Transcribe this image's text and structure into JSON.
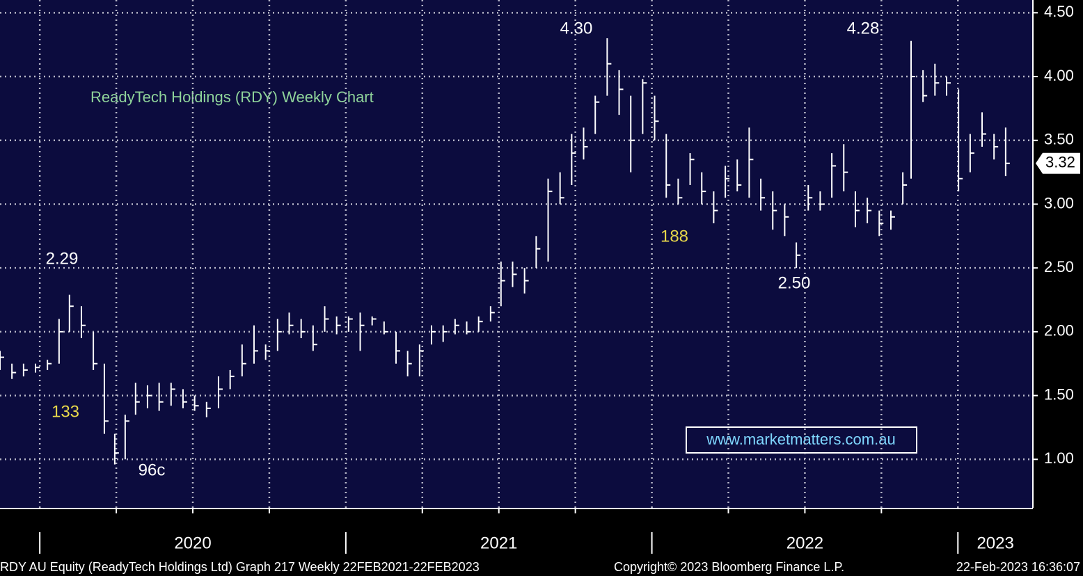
{
  "chart_data": {
    "type": "hlc",
    "title": "ReadyTech Holdings (RDY) Weekly Chart",
    "watermark": "www.marketmatters.com.au",
    "footer": [
      "RDY AU Equity (ReadyTech Holdings Ltd) Graph 217  Weekly 22FEB2021-22FEB2023",
      "Copyright© 2023 Bloomberg Finance L.P.",
      "22-Feb-2023 16:36:07"
    ],
    "annotations": [
      {
        "text": "2.29",
        "color": "#ffffff"
      },
      {
        "text": "133",
        "color": "#e8d84a"
      },
      {
        "text": "96c",
        "color": "#ffffff"
      },
      {
        "text": "4.30",
        "color": "#ffffff"
      },
      {
        "text": "188",
        "color": "#e8d84a"
      },
      {
        "text": "2.50",
        "color": "#ffffff"
      },
      {
        "text": "4.28",
        "color": "#ffffff"
      }
    ],
    "last_label": 3.32,
    "color": "#ffffff",
    "grid": true,
    "xlim": [
      2019.87,
      2023.245
    ],
    "xticks": [
      2020,
      2021,
      2022,
      2023
    ],
    "xminorticks": [
      2020.25,
      2020.5,
      2020.75,
      2021.25,
      2021.5,
      2021.75,
      2022.25,
      2022.5,
      2022.75
    ],
    "ylim": [
      0.62,
      4.6
    ],
    "yticks": [
      {
        "value": 1,
        "label": "1.00"
      },
      {
        "value": 1.5,
        "label": "1.50"
      },
      {
        "value": 2,
        "label": "2.00"
      },
      {
        "value": 2.5,
        "label": "2.50"
      },
      {
        "value": 3,
        "label": "3.00"
      },
      {
        "value": 3.5,
        "label": "3.50"
      },
      {
        "value": 4,
        "label": "4.00"
      },
      {
        "value": 4.5,
        "label": "4.50"
      }
    ],
    "x": [
      2019.87,
      2019.909,
      2019.947,
      2019.986,
      2020.025,
      2020.063,
      2020.097,
      2020.136,
      2020.175,
      2020.211,
      2020.245,
      2020.279,
      2020.313,
      2020.352,
      2020.39,
      2020.429,
      2020.468,
      2020.506,
      2020.545,
      2020.584,
      2020.622,
      2020.661,
      2020.7,
      2020.738,
      2020.777,
      2020.815,
      2020.854,
      2020.893,
      2020.931,
      2020.97,
      2021.009,
      2021.047,
      2021.086,
      2021.125,
      2021.164,
      2021.202,
      2021.241,
      2021.28,
      2021.318,
      2021.357,
      2021.395,
      2021.434,
      2021.473,
      2021.507,
      2021.545,
      2021.584,
      2021.622,
      2021.661,
      2021.7,
      2021.738,
      2021.777,
      2021.815,
      2021.854,
      2021.893,
      2021.931,
      2021.97,
      2022.009,
      2022.047,
      2022.086,
      2022.125,
      2022.163,
      2022.202,
      2022.24,
      2022.279,
      2022.318,
      2022.356,
      2022.395,
      2022.434,
      2022.472,
      2022.511,
      2022.55,
      2022.588,
      2022.627,
      2022.665,
      2022.704,
      2022.743,
      2022.781,
      2022.82,
      2022.847,
      2022.886,
      2022.925,
      2022.963,
      2023.002,
      2023.04,
      2023.079,
      2023.118,
      2023.156
    ],
    "high": [
      1.85,
      1.75,
      1.75,
      1.75,
      1.78,
      2.1,
      2.29,
      2.2,
      2.0,
      1.75,
      1.2,
      1.35,
      1.6,
      1.58,
      1.6,
      1.6,
      1.55,
      1.5,
      1.45,
      1.65,
      1.7,
      1.9,
      2.05,
      1.9,
      2.1,
      2.15,
      2.1,
      2.05,
      2.2,
      2.12,
      2.12,
      2.15,
      2.12,
      2.08,
      2.0,
      1.85,
      1.9,
      2.05,
      2.05,
      2.1,
      2.08,
      2.12,
      2.2,
      2.55,
      2.55,
      2.5,
      2.75,
      3.2,
      3.25,
      3.55,
      3.6,
      3.85,
      4.3,
      4.05,
      3.85,
      3.98,
      3.85,
      3.55,
      3.2,
      3.4,
      3.25,
      3.1,
      3.3,
      3.35,
      3.6,
      3.2,
      3.1,
      3.0,
      2.7,
      3.15,
      3.1,
      3.4,
      3.47,
      3.1,
      3.05,
      2.95,
      2.95,
      3.25,
      4.28,
      4.05,
      4.1,
      4.0,
      3.9,
      3.55,
      3.72,
      3.55,
      3.6
    ],
    "low": [
      1.7,
      1.63,
      1.65,
      1.68,
      1.7,
      1.75,
      2.0,
      1.95,
      1.7,
      1.2,
      0.96,
      1.0,
      1.35,
      1.4,
      1.38,
      1.42,
      1.4,
      1.38,
      1.33,
      1.4,
      1.55,
      1.65,
      1.75,
      1.78,
      1.85,
      1.98,
      1.95,
      1.85,
      2.0,
      1.98,
      2.0,
      1.85,
      2.05,
      1.98,
      1.75,
      1.65,
      1.65,
      1.9,
      1.92,
      1.98,
      1.98,
      2.0,
      2.08,
      2.2,
      2.35,
      2.3,
      2.5,
      2.55,
      3.0,
      3.15,
      3.35,
      3.55,
      3.85,
      3.7,
      3.25,
      3.55,
      3.5,
      3.05,
      3.0,
      3.15,
      3.0,
      2.85,
      3.05,
      3.1,
      3.05,
      2.95,
      2.8,
      2.75,
      2.5,
      2.95,
      2.95,
      3.05,
      3.1,
      2.82,
      2.85,
      2.75,
      2.8,
      3.0,
      3.2,
      3.8,
      3.85,
      3.85,
      3.1,
      3.25,
      3.45,
      3.35,
      3.22
    ],
    "close": [
      1.8,
      1.68,
      1.7,
      1.72,
      1.75,
      2.0,
      2.2,
      2.05,
      1.75,
      1.3,
      1.05,
      1.3,
      1.45,
      1.5,
      1.45,
      1.55,
      1.45,
      1.42,
      1.4,
      1.55,
      1.65,
      1.75,
      1.85,
      1.85,
      2.0,
      2.05,
      2.0,
      1.9,
      2.1,
      2.05,
      2.1,
      2.05,
      2.1,
      2.0,
      1.85,
      1.75,
      1.85,
      2.0,
      2.0,
      2.05,
      2.0,
      2.08,
      2.15,
      2.4,
      2.45,
      2.4,
      2.65,
      3.1,
      3.05,
      3.4,
      3.45,
      3.8,
      4.1,
      3.9,
      3.5,
      3.95,
      3.65,
      3.15,
      3.05,
      3.35,
      3.1,
      2.95,
      3.2,
      3.15,
      3.35,
      3.05,
      2.95,
      2.9,
      2.6,
      3.05,
      3.0,
      3.3,
      3.25,
      2.95,
      2.95,
      2.85,
      2.9,
      3.15,
      4.0,
      3.85,
      3.95,
      3.95,
      3.2,
      3.4,
      3.55,
      3.45,
      3.32
    ]
  }
}
